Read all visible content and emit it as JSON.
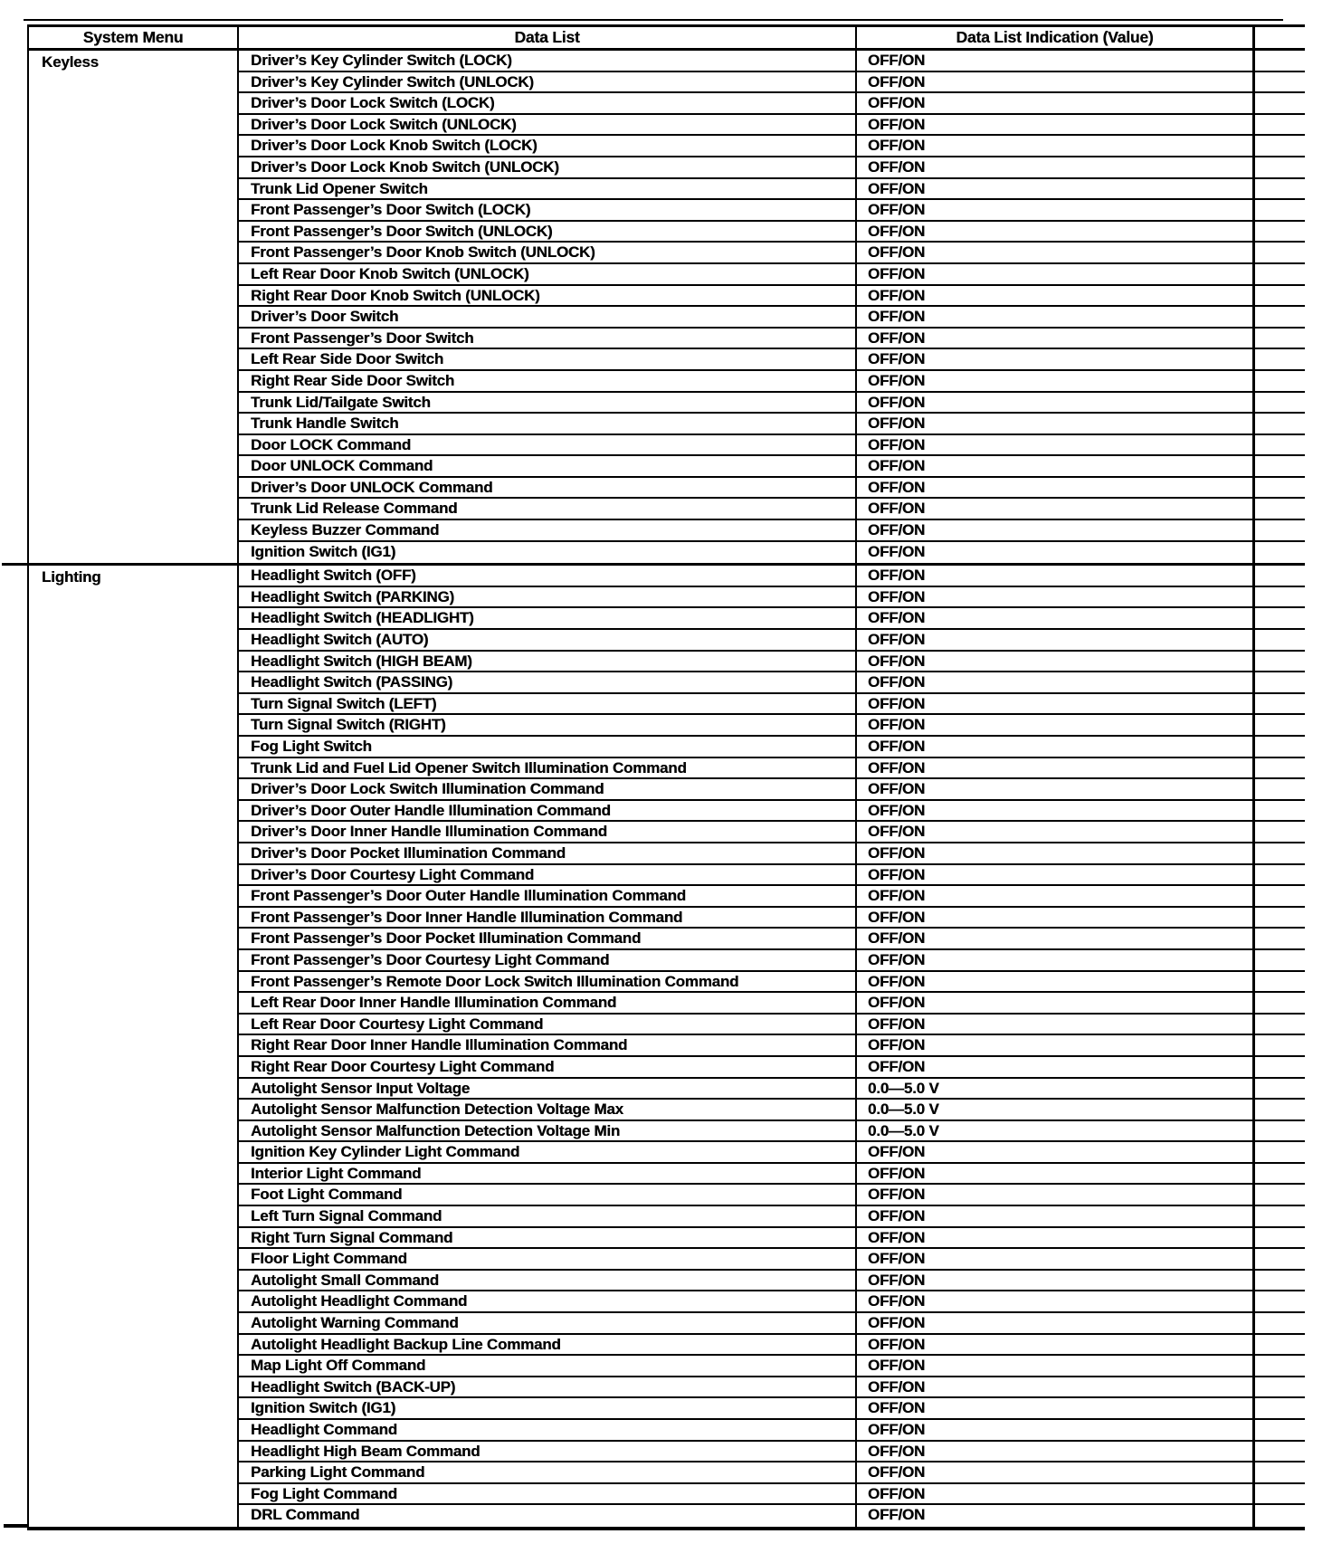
{
  "colors": {
    "ink": "#000000",
    "paper": "#ffffff"
  },
  "header": {
    "col1": "System Menu",
    "col2": "Data List",
    "col3": "Data List Indication (Value)"
  },
  "sections": [
    {
      "menu": "Keyless",
      "rows": [
        {
          "label": "Driver’s Key Cylinder Switch (LOCK)",
          "value": "OFF/ON"
        },
        {
          "label": "Driver’s Key Cylinder Switch (UNLOCK)",
          "value": "OFF/ON"
        },
        {
          "label": "Driver’s Door Lock Switch (LOCK)",
          "value": "OFF/ON"
        },
        {
          "label": "Driver’s Door Lock Switch (UNLOCK)",
          "value": "OFF/ON"
        },
        {
          "label": "Driver’s Door Lock Knob Switch (LOCK)",
          "value": "OFF/ON"
        },
        {
          "label": "Driver’s Door Lock Knob Switch (UNLOCK)",
          "value": "OFF/ON"
        },
        {
          "label": "Trunk Lid Opener Switch",
          "value": "OFF/ON"
        },
        {
          "label": "Front Passenger’s Door Switch (LOCK)",
          "value": "OFF/ON"
        },
        {
          "label": "Front Passenger’s Door Switch (UNLOCK)",
          "value": "OFF/ON"
        },
        {
          "label": "Front Passenger’s Door Knob Switch (UNLOCK)",
          "value": "OFF/ON"
        },
        {
          "label": "Left Rear Door Knob Switch (UNLOCK)",
          "value": "OFF/ON"
        },
        {
          "label": "Right Rear Door Knob Switch (UNLOCK)",
          "value": "OFF/ON"
        },
        {
          "label": "Driver’s Door Switch",
          "value": "OFF/ON"
        },
        {
          "label": "Front Passenger’s Door Switch",
          "value": "OFF/ON"
        },
        {
          "label": "Left Rear Side Door Switch",
          "value": "OFF/ON"
        },
        {
          "label": "Right Rear Side Door Switch",
          "value": "OFF/ON"
        },
        {
          "label": "Trunk Lid/Tailgate Switch",
          "value": "OFF/ON"
        },
        {
          "label": "Trunk Handle Switch",
          "value": "OFF/ON"
        },
        {
          "label": "Door LOCK Command",
          "value": "OFF/ON"
        },
        {
          "label": "Door UNLOCK Command",
          "value": "OFF/ON"
        },
        {
          "label": "Driver’s Door UNLOCK Command",
          "value": "OFF/ON"
        },
        {
          "label": "Trunk Lid Release Command",
          "value": "OFF/ON"
        },
        {
          "label": "Keyless Buzzer Command",
          "value": "OFF/ON"
        },
        {
          "label": "Ignition Switch (IG1)",
          "value": "OFF/ON"
        }
      ]
    },
    {
      "menu": "Lighting",
      "rows": [
        {
          "label": "Headlight Switch (OFF)",
          "value": "OFF/ON"
        },
        {
          "label": "Headlight Switch (PARKING)",
          "value": "OFF/ON"
        },
        {
          "label": "Headlight Switch (HEADLIGHT)",
          "value": "OFF/ON"
        },
        {
          "label": "Headlight Switch (AUTO)",
          "value": "OFF/ON"
        },
        {
          "label": "Headlight Switch (HIGH BEAM)",
          "value": "OFF/ON"
        },
        {
          "label": "Headlight Switch (PASSING)",
          "value": "OFF/ON"
        },
        {
          "label": "Turn Signal Switch (LEFT)",
          "value": "OFF/ON"
        },
        {
          "label": "Turn Signal Switch (RIGHT)",
          "value": "OFF/ON"
        },
        {
          "label": "Fog Light Switch",
          "value": "OFF/ON"
        },
        {
          "label": "Trunk Lid and Fuel Lid Opener Switch Illumination Command",
          "value": "OFF/ON"
        },
        {
          "label": "Driver’s Door Lock Switch Illumination Command",
          "value": "OFF/ON"
        },
        {
          "label": "Driver’s Door Outer Handle Illumination Command",
          "value": "OFF/ON"
        },
        {
          "label": "Driver’s Door Inner Handle Illumination Command",
          "value": "OFF/ON"
        },
        {
          "label": "Driver’s Door Pocket Illumination Command",
          "value": "OFF/ON"
        },
        {
          "label": "Driver’s Door Courtesy Light Command",
          "value": "OFF/ON"
        },
        {
          "label": "Front Passenger’s Door Outer Handle Illumination Command",
          "value": "OFF/ON"
        },
        {
          "label": "Front Passenger’s Door Inner Handle Illumination Command",
          "value": "OFF/ON"
        },
        {
          "label": "Front Passenger’s Door Pocket Illumination Command",
          "value": "OFF/ON"
        },
        {
          "label": "Front Passenger’s Door Courtesy Light Command",
          "value": "OFF/ON"
        },
        {
          "label": "Front Passenger’s Remote Door Lock Switch Illumination Command",
          "value": "OFF/ON"
        },
        {
          "label": "Left Rear Door Inner Handle Illumination Command",
          "value": "OFF/ON"
        },
        {
          "label": "Left Rear Door Courtesy Light Command",
          "value": "OFF/ON"
        },
        {
          "label": "Right Rear Door Inner Handle Illumination Command",
          "value": "OFF/ON"
        },
        {
          "label": "Right Rear Door Courtesy Light Command",
          "value": "OFF/ON"
        },
        {
          "label": "Autolight Sensor Input Voltage",
          "value": "0.0—5.0 V"
        },
        {
          "label": "Autolight Sensor Malfunction Detection Voltage Max",
          "value": "0.0—5.0 V"
        },
        {
          "label": "Autolight Sensor Malfunction Detection Voltage Min",
          "value": "0.0—5.0 V"
        },
        {
          "label": "Ignition Key Cylinder Light Command",
          "value": "OFF/ON"
        },
        {
          "label": "Interior Light Command",
          "value": "OFF/ON"
        },
        {
          "label": "Foot Light Command",
          "value": "OFF/ON"
        },
        {
          "label": "Left Turn Signal Command",
          "value": "OFF/ON"
        },
        {
          "label": "Right Turn Signal Command",
          "value": "OFF/ON"
        },
        {
          "label": "Floor Light Command",
          "value": "OFF/ON"
        },
        {
          "label": "Autolight Small Command",
          "value": "OFF/ON"
        },
        {
          "label": "Autolight Headlight Command",
          "value": "OFF/ON"
        },
        {
          "label": "Autolight Warning Command",
          "value": "OFF/ON"
        },
        {
          "label": "Autolight Headlight Backup Line Command",
          "value": "OFF/ON"
        },
        {
          "label": "Map Light Off Command",
          "value": "OFF/ON"
        },
        {
          "label": "Headlight Switch (BACK-UP)",
          "value": "OFF/ON"
        },
        {
          "label": "Ignition Switch (IG1)",
          "value": "OFF/ON"
        },
        {
          "label": "Headlight Command",
          "value": "OFF/ON"
        },
        {
          "label": "Headlight High Beam Command",
          "value": "OFF/ON"
        },
        {
          "label": "Parking Light Command",
          "value": "OFF/ON"
        },
        {
          "label": "Fog Light Command",
          "value": "OFF/ON"
        },
        {
          "label": "DRL Command",
          "value": "OFF/ON"
        }
      ]
    }
  ]
}
